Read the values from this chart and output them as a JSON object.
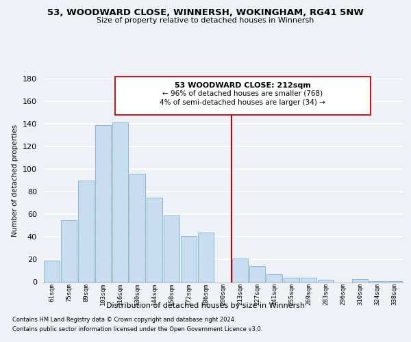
{
  "title": "53, WOODWARD CLOSE, WINNERSH, WOKINGHAM, RG41 5NW",
  "subtitle": "Size of property relative to detached houses in Winnersh",
  "xlabel": "Distribution of detached houses by size in Winnersh",
  "ylabel": "Number of detached properties",
  "bar_labels": [
    "61sqm",
    "75sqm",
    "89sqm",
    "103sqm",
    "116sqm",
    "130sqm",
    "144sqm",
    "158sqm",
    "172sqm",
    "186sqm",
    "200sqm",
    "213sqm",
    "227sqm",
    "241sqm",
    "255sqm",
    "269sqm",
    "283sqm",
    "296sqm",
    "310sqm",
    "324sqm",
    "338sqm"
  ],
  "bar_values": [
    19,
    55,
    90,
    139,
    141,
    96,
    75,
    59,
    41,
    44,
    0,
    21,
    14,
    7,
    4,
    4,
    2,
    0,
    3,
    1,
    1
  ],
  "bar_color": "#c8ddef",
  "bar_edge_color": "#7aafd4",
  "highlight_index": 11,
  "highlight_line_color": "#cc0000",
  "ylim": [
    0,
    180
  ],
  "yticks": [
    0,
    20,
    40,
    60,
    80,
    100,
    120,
    140,
    160,
    180
  ],
  "annotation_title": "53 WOODWARD CLOSE: 212sqm",
  "annotation_line1": "← 96% of detached houses are smaller (768)",
  "annotation_line2": "4% of semi-detached houses are larger (34) →",
  "footer_line1": "Contains HM Land Registry data © Crown copyright and database right 2024.",
  "footer_line2": "Contains public sector information licensed under the Open Government Licence v3.0.",
  "bg_color": "#eef2f7"
}
